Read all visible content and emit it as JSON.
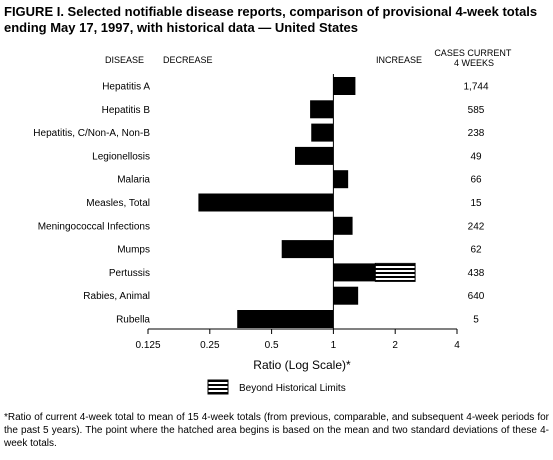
{
  "title": "FIGURE I. Selected notifiable disease reports, comparison of provisional 4-week totals ending May 17, 1997, with historical data — United States",
  "headers": {
    "disease": "DISEASE",
    "decrease": "DECREASE",
    "increase": "INCREASE",
    "cases": "CASES CURRENT\n4 WEEKS"
  },
  "legend": {
    "label": "Beyond Historical Limits"
  },
  "footnote": "*Ratio of current 4-week total to mean of 15 4-week totals (from previous, comparable, and subsequent 4-week periods for the past 5 years). The point where the hatched area begins is based on the mean and two standard deviations of these 4-week totals.",
  "colors": {
    "bar": "#000000",
    "background": "#ffffff"
  },
  "chart_data": {
    "type": "bar",
    "orientation": "horizontal",
    "xscale": "log2",
    "xlabel": "Ratio (Log Scale)*",
    "xlim": [
      0.125,
      4
    ],
    "baseline": 1,
    "xticks": [
      0.125,
      0.25,
      0.5,
      1,
      2,
      4
    ],
    "xtick_labels": [
      "0.125",
      "0.25",
      "0.5",
      "1",
      "2",
      "4"
    ],
    "categories": [
      "Hepatitis A",
      "Hepatitis B",
      "Hepatitis, C/Non-A, Non-B",
      "Legionellosis",
      "Malaria",
      "Measles, Total",
      "Meningococcal Infections",
      "Mumps",
      "Pertussis",
      "Rabies, Animal",
      "Rubella"
    ],
    "values": [
      1.28,
      0.77,
      0.78,
      0.65,
      1.18,
      0.22,
      1.24,
      0.56,
      2.5,
      1.32,
      0.34
    ],
    "beyond_limits_start": [
      null,
      null,
      null,
      null,
      null,
      null,
      null,
      null,
      1.6,
      null,
      null
    ],
    "cases": [
      "1,744",
      "585",
      "238",
      "49",
      "66",
      "15",
      "242",
      "62",
      "438",
      "640",
      "5"
    ]
  }
}
